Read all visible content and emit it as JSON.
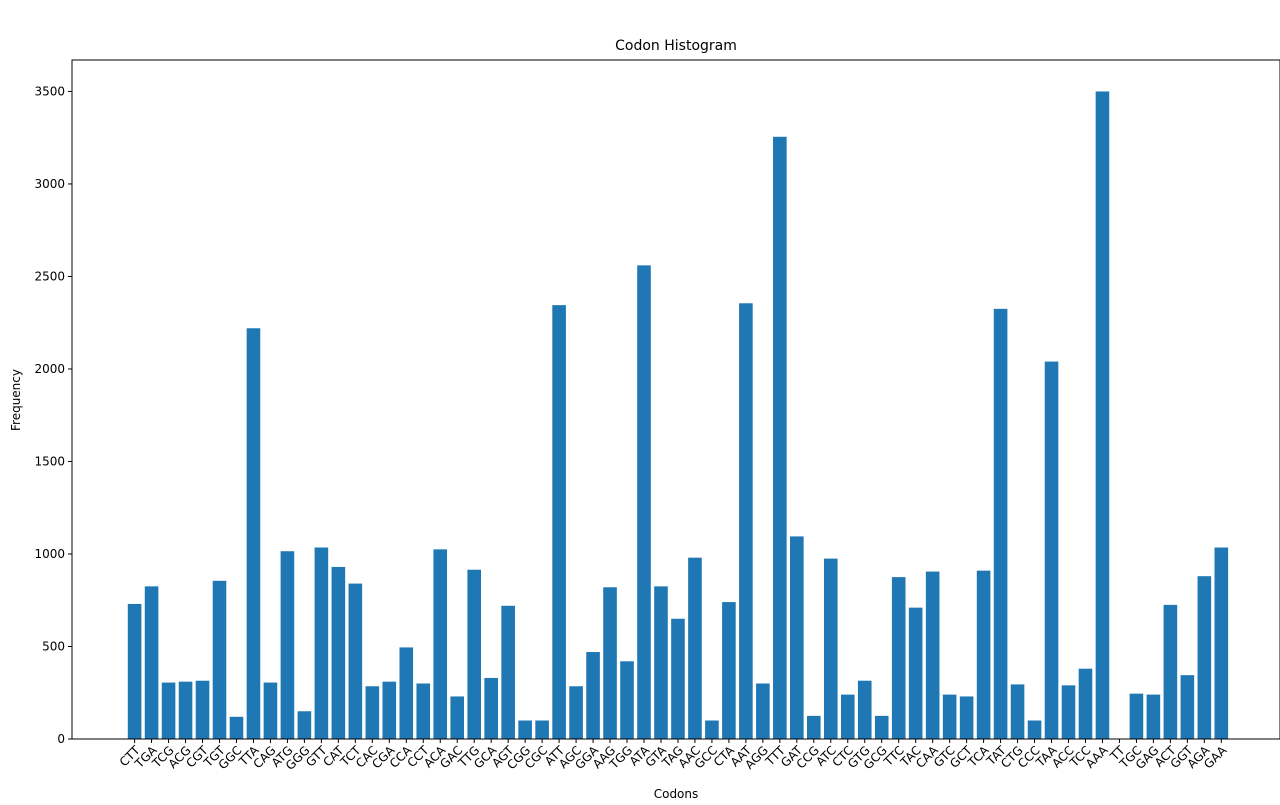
{
  "chart_data": {
    "type": "bar",
    "title": "Codon Histogram",
    "xlabel": "Codons",
    "ylabel": "Frequency",
    "ylim": [
      0,
      3670
    ],
    "yticks": [
      0,
      500,
      1000,
      1500,
      2000,
      2500,
      3000,
      3500
    ],
    "bar_color": "#1f77b4",
    "categories": [
      "CTT",
      "TGA",
      "TCG",
      "ACG",
      "CGT",
      "TGT",
      "GGC",
      "TTA",
      "CAG",
      "ATG",
      "GGG",
      "GTT",
      "CAT",
      "TCT",
      "CAC",
      "CGA",
      "CCA",
      "CCT",
      "ACA",
      "GAC",
      "TTG",
      "GCA",
      "AGT",
      "CGG",
      "CGC",
      "ATT",
      "AGC",
      "GGA",
      "AAG",
      "TGG",
      "ATA",
      "GTA",
      "TAG",
      "AAC",
      "GCC",
      "CTA",
      "AAT",
      "AGG",
      "TTT",
      "GAT",
      "CCG",
      "ATC",
      "CTC",
      "GTG",
      "GCG",
      "TTC",
      "TAC",
      "CAA",
      "GTC",
      "GCT",
      "TCA",
      "TAT",
      "CTG",
      "CCC",
      "TAA",
      "ACC",
      "TCC",
      "AAA",
      "TT",
      "TGC",
      "GAG",
      "ACT",
      "GGT",
      "AGA",
      "GAA"
    ],
    "values": [
      730,
      825,
      305,
      310,
      315,
      855,
      120,
      2220,
      305,
      1015,
      150,
      1035,
      930,
      840,
      285,
      310,
      495,
      300,
      1025,
      230,
      915,
      330,
      720,
      100,
      100,
      2345,
      285,
      470,
      820,
      420,
      2560,
      825,
      650,
      980,
      100,
      740,
      2355,
      300,
      3255,
      1095,
      125,
      975,
      240,
      315,
      125,
      875,
      710,
      905,
      240,
      230,
      910,
      2325,
      295,
      100,
      2040,
      290,
      380,
      3500,
      0,
      245,
      240,
      725,
      345,
      880,
      1035
    ]
  }
}
